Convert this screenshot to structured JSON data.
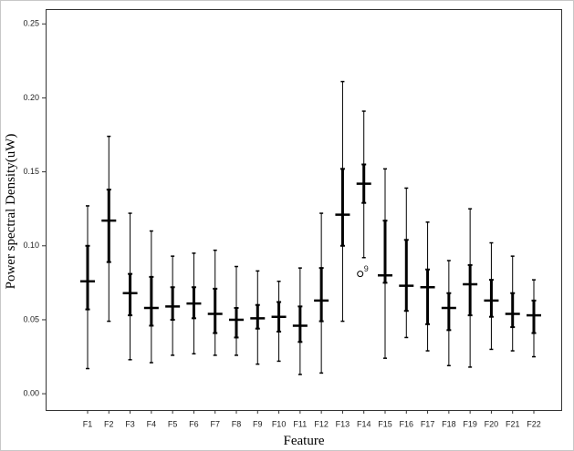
{
  "chart_data": {
    "type": "box",
    "xlabel": "Feature",
    "ylabel": "Power spectral  Density(uW)",
    "categories": [
      "F1",
      "F2",
      "F3",
      "F4",
      "F5",
      "F6",
      "F7",
      "F8",
      "F9",
      "F10",
      "F11",
      "F12",
      "F13",
      "F14",
      "F15",
      "F16",
      "F17",
      "F18",
      "F19",
      "F20",
      "F21",
      "F22"
    ],
    "min": [
      0.017,
      0.049,
      0.023,
      0.021,
      0.026,
      0.027,
      0.026,
      0.026,
      0.02,
      0.022,
      0.013,
      0.014,
      0.049,
      0.092,
      0.024,
      0.038,
      0.029,
      0.019,
      0.018,
      0.03,
      0.029,
      0.025
    ],
    "q1": [
      0.057,
      0.089,
      0.053,
      0.046,
      0.05,
      0.051,
      0.041,
      0.038,
      0.044,
      0.042,
      0.035,
      0.049,
      0.1,
      0.129,
      0.075,
      0.056,
      0.047,
      0.043,
      0.053,
      0.052,
      0.045,
      0.041
    ],
    "median": [
      0.076,
      0.117,
      0.068,
      0.058,
      0.059,
      0.061,
      0.054,
      0.05,
      0.051,
      0.052,
      0.046,
      0.063,
      0.121,
      0.142,
      0.08,
      0.073,
      0.072,
      0.058,
      0.074,
      0.063,
      0.054,
      0.053
    ],
    "q3": [
      0.1,
      0.138,
      0.081,
      0.079,
      0.072,
      0.072,
      0.071,
      0.058,
      0.06,
      0.062,
      0.059,
      0.085,
      0.152,
      0.155,
      0.117,
      0.104,
      0.084,
      0.068,
      0.087,
      0.077,
      0.068,
      0.063
    ],
    "max": [
      0.127,
      0.174,
      0.122,
      0.11,
      0.093,
      0.095,
      0.097,
      0.086,
      0.083,
      0.076,
      0.085,
      0.122,
      0.211,
      0.191,
      0.152,
      0.139,
      0.116,
      0.09,
      0.125,
      0.102,
      0.093,
      0.077
    ],
    "outliers": [
      {
        "category": "F14",
        "value": 0.081,
        "label": "9"
      }
    ],
    "color": "#000000",
    "ylim": [
      -0.011,
      0.26
    ],
    "yticks": [
      {
        "value": 0,
        "label": "0.00"
      },
      {
        "value": 0.05,
        "label": "0.05"
      },
      {
        "value": 0.1,
        "label": "0.10"
      },
      {
        "value": 0.15,
        "label": "0.15"
      },
      {
        "value": 0.2,
        "label": "0.20"
      },
      {
        "value": 0.25,
        "label": "0.25"
      }
    ]
  }
}
